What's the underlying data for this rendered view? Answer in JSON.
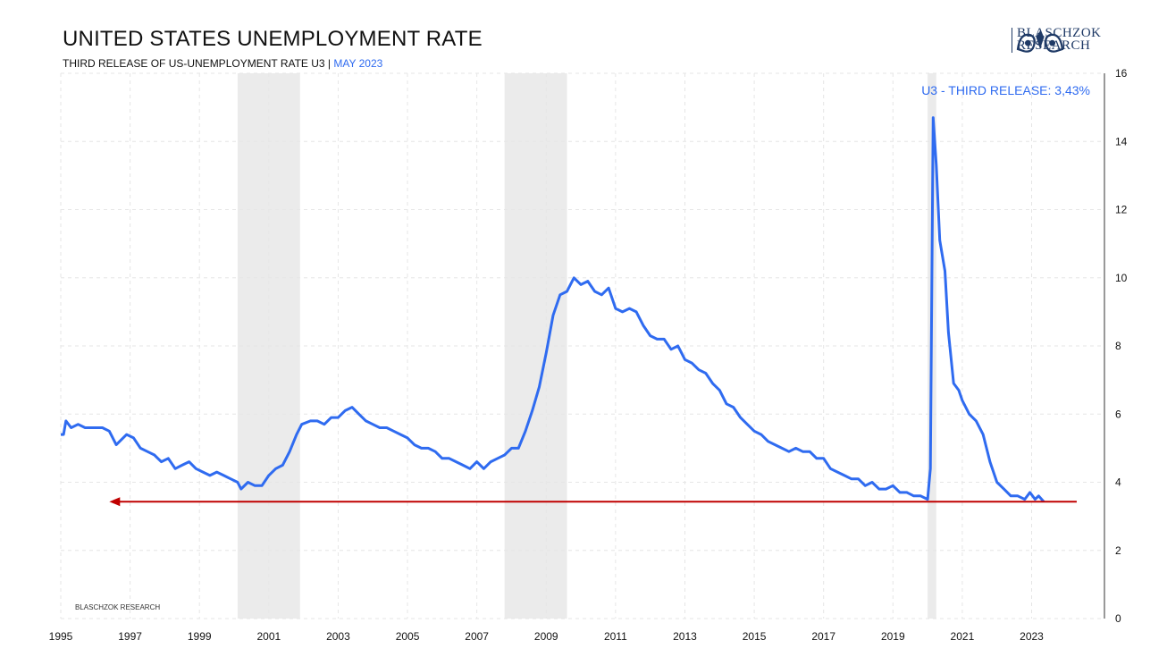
{
  "header": {
    "title": "UNITED STATES UNEMPLOYMENT RATE",
    "subtitle_main": "THIRD RELEASE OF US-UNEMPLOYMENT RATE U3 |",
    "subtitle_accent": "MAY 2023"
  },
  "logo": {
    "line1": "BLASCHZOK",
    "line2": "RESEARCH"
  },
  "colors": {
    "line": "#2f6bf0",
    "arrow": "#c00000",
    "recession": "#ebebeb",
    "grid": "#e6e6e6"
  },
  "chart_data": {
    "type": "line",
    "title": "UNITED STATES UNEMPLOYMENT RATE",
    "xlabel": "",
    "ylabel": "",
    "xlim": [
      1995,
      2025.1
    ],
    "ylim": [
      0,
      16
    ],
    "x_ticks": [
      "1995",
      "1997",
      "1999",
      "2001",
      "2003",
      "2005",
      "2007",
      "2009",
      "2011",
      "2013",
      "2015",
      "2017",
      "2019",
      "2021",
      "2023"
    ],
    "y_ticks": [
      "0",
      "2",
      "4",
      "6",
      "8",
      "10",
      "12",
      "14",
      "16"
    ],
    "grid": true,
    "annotation": "U3 - THIRD RELEASE: 3,43%",
    "watermark": "BLASCHZOK  RESEARCH",
    "recessions": [
      [
        2000.1,
        2001.9
      ],
      [
        2007.8,
        2009.6
      ],
      [
        2020.0,
        2020.25
      ]
    ],
    "reference_arrow": {
      "value": 3.43,
      "from": 2024.3,
      "to": 1996.4
    },
    "series": [
      {
        "points": [
          [
            1995.0,
            5.4
          ],
          [
            1995.08,
            5.4
          ],
          [
            1995.15,
            5.8
          ],
          [
            1995.3,
            5.6
          ],
          [
            1995.5,
            5.7
          ],
          [
            1995.7,
            5.6
          ],
          [
            1995.9,
            5.6
          ],
          [
            1996.2,
            5.6
          ],
          [
            1996.4,
            5.5
          ],
          [
            1996.6,
            5.1
          ],
          [
            1996.9,
            5.4
          ],
          [
            1997.1,
            5.3
          ],
          [
            1997.3,
            5.0
          ],
          [
            1997.5,
            4.9
          ],
          [
            1997.7,
            4.8
          ],
          [
            1997.9,
            4.6
          ],
          [
            1998.1,
            4.7
          ],
          [
            1998.3,
            4.4
          ],
          [
            1998.5,
            4.5
          ],
          [
            1998.7,
            4.6
          ],
          [
            1998.9,
            4.4
          ],
          [
            1999.1,
            4.3
          ],
          [
            1999.3,
            4.2
          ],
          [
            1999.5,
            4.3
          ],
          [
            1999.7,
            4.2
          ],
          [
            1999.9,
            4.1
          ],
          [
            2000.1,
            4.0
          ],
          [
            2000.2,
            3.8
          ],
          [
            2000.4,
            4.0
          ],
          [
            2000.6,
            3.9
          ],
          [
            2000.8,
            3.9
          ],
          [
            2001.0,
            4.2
          ],
          [
            2001.2,
            4.4
          ],
          [
            2001.4,
            4.5
          ],
          [
            2001.6,
            4.9
          ],
          [
            2001.8,
            5.4
          ],
          [
            2001.95,
            5.7
          ],
          [
            2002.2,
            5.8
          ],
          [
            2002.4,
            5.8
          ],
          [
            2002.6,
            5.7
          ],
          [
            2002.8,
            5.9
          ],
          [
            2003.0,
            5.9
          ],
          [
            2003.2,
            6.1
          ],
          [
            2003.4,
            6.2
          ],
          [
            2003.6,
            6.0
          ],
          [
            2003.8,
            5.8
          ],
          [
            2004.0,
            5.7
          ],
          [
            2004.2,
            5.6
          ],
          [
            2004.4,
            5.6
          ],
          [
            2004.6,
            5.5
          ],
          [
            2004.8,
            5.4
          ],
          [
            2005.0,
            5.3
          ],
          [
            2005.2,
            5.1
          ],
          [
            2005.4,
            5.0
          ],
          [
            2005.6,
            5.0
          ],
          [
            2005.8,
            4.9
          ],
          [
            2006.0,
            4.7
          ],
          [
            2006.2,
            4.7
          ],
          [
            2006.4,
            4.6
          ],
          [
            2006.6,
            4.5
          ],
          [
            2006.8,
            4.4
          ],
          [
            2007.0,
            4.6
          ],
          [
            2007.2,
            4.4
          ],
          [
            2007.4,
            4.6
          ],
          [
            2007.6,
            4.7
          ],
          [
            2007.8,
            4.8
          ],
          [
            2008.0,
            5.0
          ],
          [
            2008.2,
            5.0
          ],
          [
            2008.4,
            5.5
          ],
          [
            2008.6,
            6.1
          ],
          [
            2008.8,
            6.8
          ],
          [
            2009.0,
            7.8
          ],
          [
            2009.2,
            8.9
          ],
          [
            2009.4,
            9.5
          ],
          [
            2009.6,
            9.6
          ],
          [
            2009.8,
            10.0
          ],
          [
            2010.0,
            9.8
          ],
          [
            2010.2,
            9.9
          ],
          [
            2010.4,
            9.6
          ],
          [
            2010.6,
            9.5
          ],
          [
            2010.8,
            9.7
          ],
          [
            2011.0,
            9.1
          ],
          [
            2011.2,
            9.0
          ],
          [
            2011.4,
            9.1
          ],
          [
            2011.6,
            9.0
          ],
          [
            2011.8,
            8.6
          ],
          [
            2012.0,
            8.3
          ],
          [
            2012.2,
            8.2
          ],
          [
            2012.4,
            8.2
          ],
          [
            2012.6,
            7.9
          ],
          [
            2012.8,
            8.0
          ],
          [
            2013.0,
            7.6
          ],
          [
            2013.2,
            7.5
          ],
          [
            2013.4,
            7.3
          ],
          [
            2013.6,
            7.2
          ],
          [
            2013.8,
            6.9
          ],
          [
            2014.0,
            6.7
          ],
          [
            2014.2,
            6.3
          ],
          [
            2014.4,
            6.2
          ],
          [
            2014.6,
            5.9
          ],
          [
            2014.8,
            5.7
          ],
          [
            2015.0,
            5.5
          ],
          [
            2015.2,
            5.4
          ],
          [
            2015.4,
            5.2
          ],
          [
            2015.6,
            5.1
          ],
          [
            2015.8,
            5.0
          ],
          [
            2016.0,
            4.9
          ],
          [
            2016.2,
            5.0
          ],
          [
            2016.4,
            4.9
          ],
          [
            2016.6,
            4.9
          ],
          [
            2016.8,
            4.7
          ],
          [
            2017.0,
            4.7
          ],
          [
            2017.2,
            4.4
          ],
          [
            2017.4,
            4.3
          ],
          [
            2017.6,
            4.2
          ],
          [
            2017.8,
            4.1
          ],
          [
            2018.0,
            4.1
          ],
          [
            2018.2,
            3.9
          ],
          [
            2018.4,
            4.0
          ],
          [
            2018.6,
            3.8
          ],
          [
            2018.8,
            3.8
          ],
          [
            2019.0,
            3.9
          ],
          [
            2019.2,
            3.7
          ],
          [
            2019.4,
            3.7
          ],
          [
            2019.6,
            3.6
          ],
          [
            2019.8,
            3.6
          ],
          [
            2020.0,
            3.5
          ],
          [
            2020.08,
            4.4
          ],
          [
            2020.16,
            14.7
          ],
          [
            2020.25,
            13.3
          ],
          [
            2020.35,
            11.1
          ],
          [
            2020.5,
            10.2
          ],
          [
            2020.6,
            8.4
          ],
          [
            2020.75,
            6.9
          ],
          [
            2020.9,
            6.7
          ],
          [
            2021.0,
            6.4
          ],
          [
            2021.2,
            6.0
          ],
          [
            2021.4,
            5.8
          ],
          [
            2021.6,
            5.4
          ],
          [
            2021.8,
            4.6
          ],
          [
            2022.0,
            4.0
          ],
          [
            2022.2,
            3.8
          ],
          [
            2022.4,
            3.6
          ],
          [
            2022.6,
            3.6
          ],
          [
            2022.8,
            3.5
          ],
          [
            2022.95,
            3.7
          ],
          [
            2023.1,
            3.5
          ],
          [
            2023.2,
            3.6
          ],
          [
            2023.35,
            3.43
          ]
        ]
      }
    ]
  }
}
